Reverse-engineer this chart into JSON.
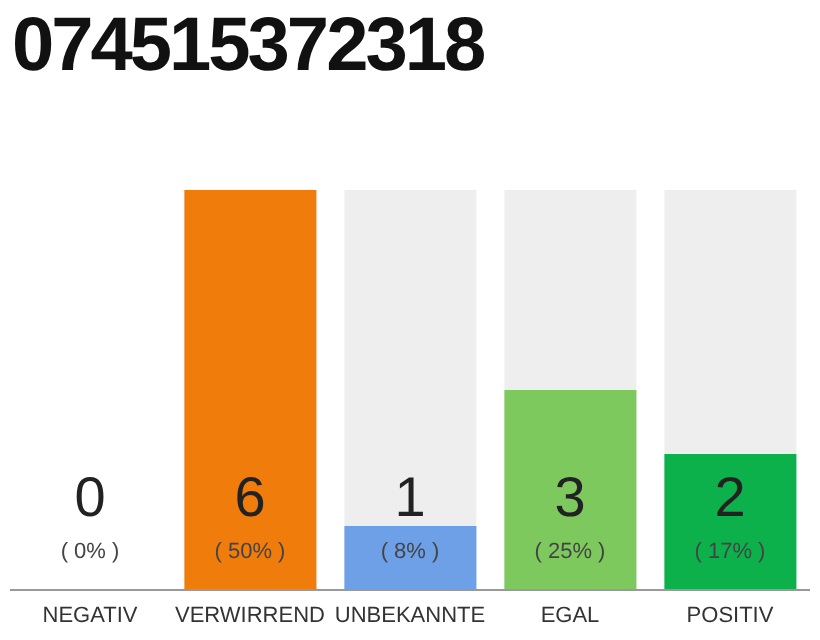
{
  "chart_data": {
    "type": "bar",
    "title": "074515372318",
    "categories": [
      "NEGATIV",
      "VERWIRREND",
      "UNBEKANNTE",
      "EGAL",
      "POSITIV"
    ],
    "values": [
      0,
      50,
      8,
      25,
      17
    ],
    "colors": [
      "#9e9e9e",
      "#f07c0c",
      "#6ea0e8",
      "#7dc95e",
      "#0db14b"
    ],
    "value_labels": [
      "( 0% )",
      "( 50% )",
      "( 8% )",
      "( 25% )",
      "( 17% )"
    ],
    "annotations": [
      "0",
      "6",
      "1",
      "3",
      "2"
    ]
  }
}
